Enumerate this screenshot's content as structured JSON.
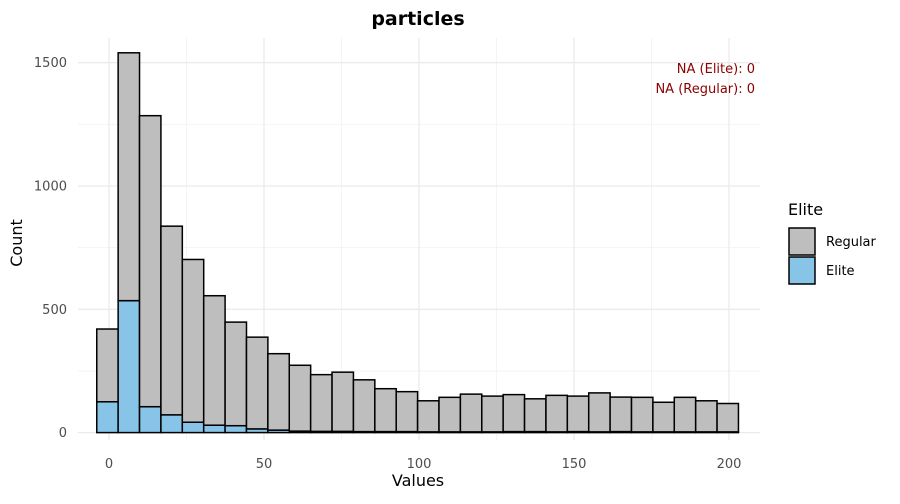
{
  "chart_data": {
    "type": "bar",
    "title": "particles",
    "xlabel": "Values",
    "ylabel": "Count",
    "xlim": [
      -10,
      210
    ],
    "ylim": [
      -30,
      1600
    ],
    "x_ticks": [
      0,
      50,
      100,
      150,
      200
    ],
    "y_ticks": [
      0,
      500,
      1000,
      1500
    ],
    "bin_width": 6.9,
    "bin_centers": [
      -0.5,
      6.4,
      13.3,
      20.2,
      27.1,
      34.0,
      40.9,
      47.8,
      54.7,
      61.6,
      68.5,
      75.4,
      82.3,
      89.2,
      96.1,
      103.0,
      109.9,
      116.8,
      123.7,
      130.6,
      137.5,
      144.4,
      151.3,
      158.2,
      165.1,
      172.0,
      178.9,
      185.8,
      192.7,
      199.6
    ],
    "series": [
      {
        "name": "Regular",
        "color": "#bebebe",
        "values": [
          295,
          1005,
          1180,
          765,
          660,
          525,
          420,
          372,
          310,
          267,
          230,
          240,
          210,
          174,
          162,
          126,
          140,
          153,
          145,
          150,
          133,
          148,
          144,
          158,
          140,
          140,
          120,
          140,
          126,
          115
        ]
      },
      {
        "name": "Elite",
        "color": "#87c4e8",
        "values": [
          125,
          535,
          105,
          72,
          42,
          30,
          28,
          15,
          10,
          6,
          5,
          5,
          4,
          4,
          4,
          3,
          3,
          3,
          3,
          4,
          4,
          3,
          4,
          3,
          4,
          3,
          3,
          3,
          3,
          3
        ]
      }
    ],
    "stacked": true,
    "grid": true,
    "legend": {
      "title": "Elite",
      "position": "right",
      "items": [
        "Regular",
        "Elite"
      ]
    },
    "annotations": [
      "NA (Elite): 0",
      "NA (Regular): 0"
    ]
  }
}
